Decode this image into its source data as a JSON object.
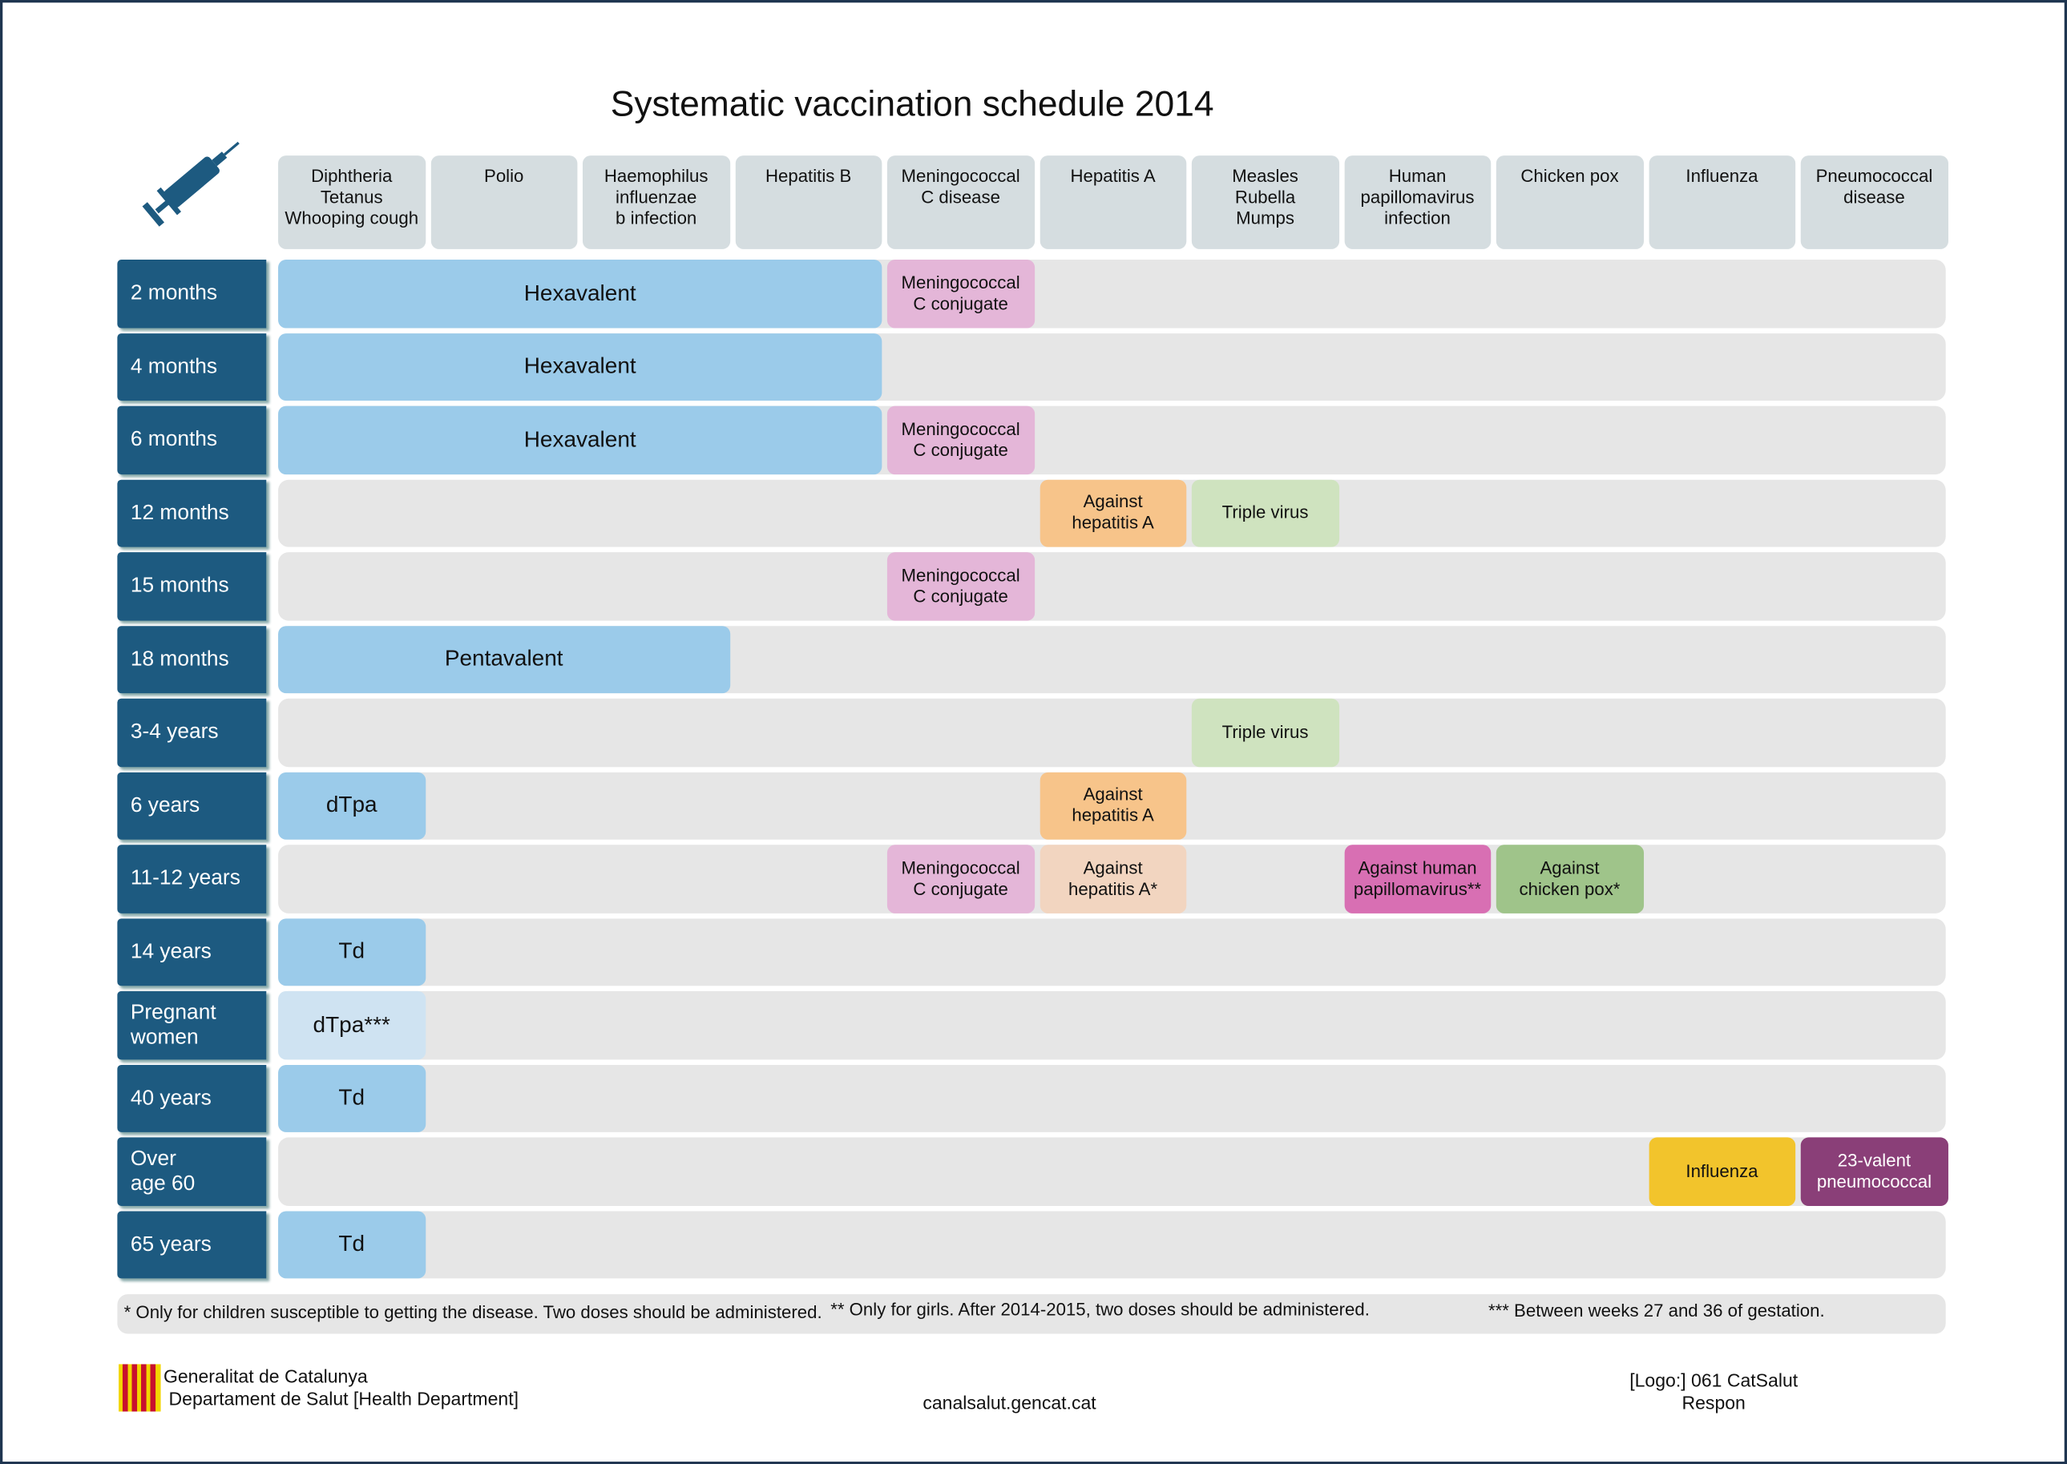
{
  "title": "Systematic vaccination schedule 2014",
  "columns": [
    [
      "Diphtheria",
      "Tetanus",
      "Whooping cough"
    ],
    [
      "Polio"
    ],
    [
      "Haemophilus",
      "influenzae",
      "b infection"
    ],
    [
      "Hepatitis B"
    ],
    [
      "Meningococcal",
      "C disease"
    ],
    [
      "Hepatitis A"
    ],
    [
      "Measles",
      "Rubella",
      "Mumps"
    ],
    [
      "Human",
      "papillomavirus",
      "infection"
    ],
    [
      "Chicken pox"
    ],
    [
      "Influenza"
    ],
    [
      "Pneumococcal",
      "disease"
    ]
  ],
  "rows": [
    {
      "label": [
        "2 months"
      ],
      "cells": [
        {
          "lines": [
            "Hexavalent"
          ]
        },
        {
          "lines": [
            "Meningococcal",
            "C conjugate"
          ]
        }
      ]
    },
    {
      "label": [
        "4 months"
      ],
      "cells": [
        {
          "lines": [
            "Hexavalent"
          ]
        }
      ]
    },
    {
      "label": [
        "6 months"
      ],
      "cells": [
        {
          "lines": [
            "Hexavalent"
          ]
        },
        {
          "lines": [
            "Meningococcal",
            "C conjugate"
          ]
        }
      ]
    },
    {
      "label": [
        "12 months"
      ],
      "cells": [
        {
          "lines": [
            "Against",
            "hepatitis A"
          ]
        },
        {
          "lines": [
            "Triple virus"
          ]
        }
      ]
    },
    {
      "label": [
        "15 months"
      ],
      "cells": [
        {
          "lines": [
            "Meningococcal",
            "C conjugate"
          ]
        }
      ]
    },
    {
      "label": [
        "18 months"
      ],
      "cells": [
        {
          "lines": [
            "Pentavalent"
          ]
        }
      ]
    },
    {
      "label": [
        "3-4 years"
      ],
      "cells": [
        {
          "lines": [
            "Triple virus"
          ]
        }
      ]
    },
    {
      "label": [
        "6 years"
      ],
      "cells": [
        {
          "lines": [
            "dTpa"
          ]
        },
        {
          "lines": [
            "Against",
            "hepatitis A"
          ]
        }
      ]
    },
    {
      "label": [
        "11-12 years"
      ],
      "cells": [
        {
          "lines": [
            "Meningococcal",
            "C conjugate"
          ]
        },
        {
          "lines": [
            "Against",
            "hepatitis A*"
          ]
        },
        {
          "lines": [
            "Against human",
            "papillomavirus**"
          ]
        },
        {
          "lines": [
            "Against",
            "chicken pox*"
          ]
        }
      ]
    },
    {
      "label": [
        "14 years"
      ],
      "cells": [
        {
          "lines": [
            "Td"
          ]
        }
      ]
    },
    {
      "label": [
        "Pregnant",
        "women"
      ],
      "cells": [
        {
          "lines": [
            "dTpa***"
          ]
        }
      ]
    },
    {
      "label": [
        "40 years"
      ],
      "cells": [
        {
          "lines": [
            "Td"
          ]
        }
      ]
    },
    {
      "label": [
        "Over",
        "age 60"
      ],
      "cells": [
        {
          "lines": [
            "Influenza"
          ]
        },
        {
          "lines": [
            "23-valent",
            "pneumococcal"
          ]
        }
      ]
    },
    {
      "label": [
        "65 years"
      ],
      "cells": [
        {
          "lines": [
            "Td"
          ]
        }
      ]
    }
  ],
  "footnotes": [
    "* Only for children susceptible to getting the disease. Two doses should be administered.",
    "** Only for girls. After 2014-2015, two doses should be administered.",
    "*** Between weeks 27 and 36 of gestation."
  ],
  "footer": {
    "left": [
      "Generalitat de Catalunya",
      "Departament de Salut [Health Department]"
    ],
    "center": "canalsalut.gencat.cat",
    "right": [
      "[Logo:] 061 CatSalut",
      "Respon"
    ]
  }
}
